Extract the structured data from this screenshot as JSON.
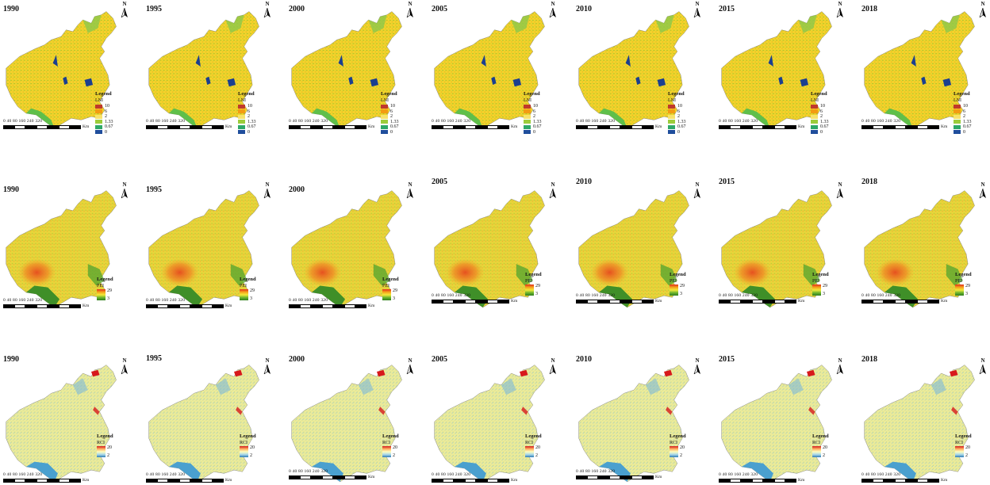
{
  "scale_bar": {
    "numbers": "0  40 80    160   240   320",
    "unit": "Km"
  },
  "north_label": "N",
  "legend_title": "Legend",
  "colors": {
    "lni": [
      "#c0392b",
      "#f39c12",
      "#f7e26b",
      "#9ccc3a",
      "#2ea868",
      "#1f4e9c"
    ],
    "pei_grad": [
      "#e02f1e",
      "#f6a21a",
      "#f2ea3b",
      "#6cb52d",
      "#2f7d1f"
    ],
    "rci_grad": [
      "#d7191c",
      "#fdae61",
      "#ffffbf",
      "#abd9e9",
      "#2c7bb6"
    ]
  },
  "rows": [
    {
      "index": "LNI",
      "type": "classes",
      "legend_values": [
        "10",
        "6",
        "2",
        "1.33",
        "0.67",
        "0"
      ],
      "years": [
        "1990",
        "1995",
        "2000",
        "2005",
        "2010",
        "2015",
        "2018"
      ]
    },
    {
      "index": "PEI",
      "type": "gradient",
      "legend_max": "29",
      "legend_min": "3",
      "years": [
        "1990",
        "1995",
        "2000",
        "2005",
        "2010",
        "2015",
        "2018"
      ]
    },
    {
      "index": "RCI",
      "type": "gradient",
      "legend_max": "20",
      "legend_min": "2",
      "years": [
        "1990",
        "1995",
        "2000",
        "2005",
        "2010",
        "2015",
        "2018"
      ]
    }
  ]
}
